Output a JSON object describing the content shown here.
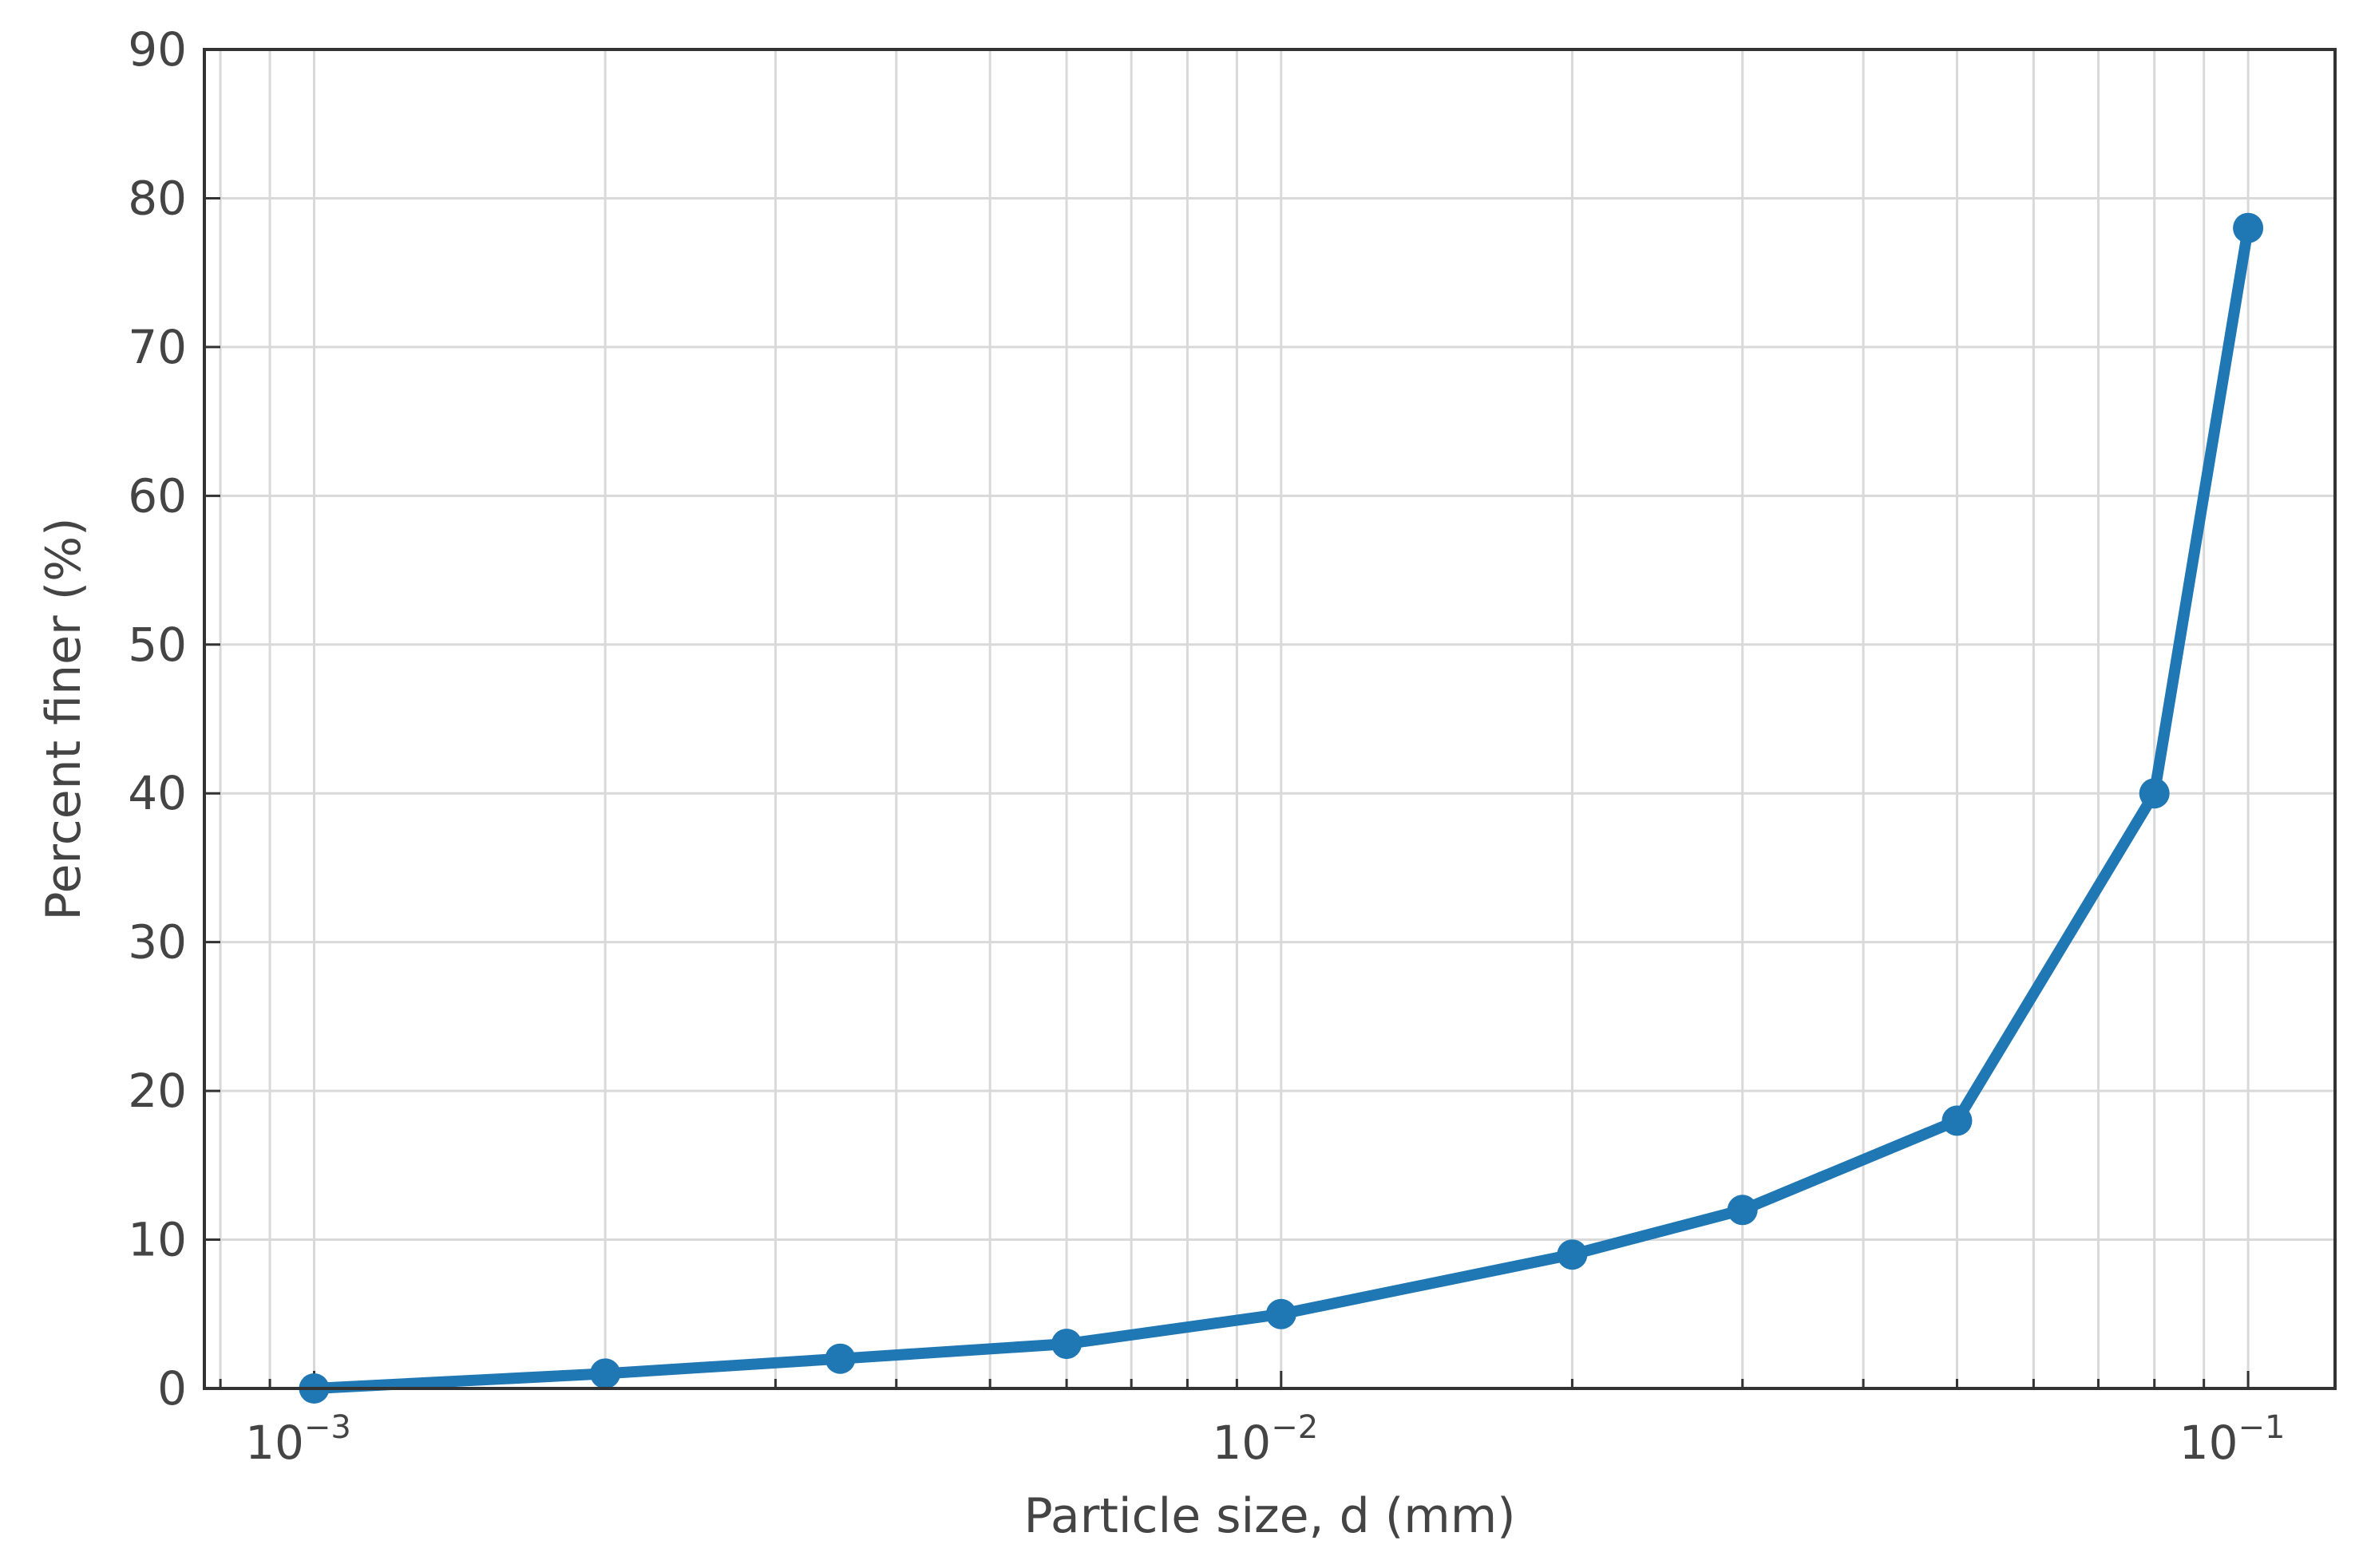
{
  "chart_data": {
    "type": "line",
    "xlabel": "Particle size, d (mm)",
    "ylabel": "Percent finer (%)",
    "x_scale": "log",
    "xlim": [
      0.00077,
      0.123
    ],
    "ylim": [
      0,
      90
    ],
    "grid": true,
    "x_major_ticks": [
      {
        "value": 0.001,
        "base": "10",
        "exp": "−3"
      },
      {
        "value": 0.01,
        "base": "10",
        "exp": "−2"
      },
      {
        "value": 0.1,
        "base": "10",
        "exp": "−1"
      }
    ],
    "y_ticks": [
      "0",
      "10",
      "20",
      "30",
      "40",
      "50",
      "60",
      "70",
      "80",
      "90"
    ],
    "series": [
      {
        "x": [
          0.001,
          0.002,
          0.0035,
          0.006,
          0.01,
          0.02,
          0.03,
          0.05,
          0.08,
          0.1
        ],
        "y": [
          0,
          1,
          2,
          3,
          5,
          9,
          12,
          18,
          40,
          78
        ],
        "color": "#1f77b4"
      }
    ]
  }
}
